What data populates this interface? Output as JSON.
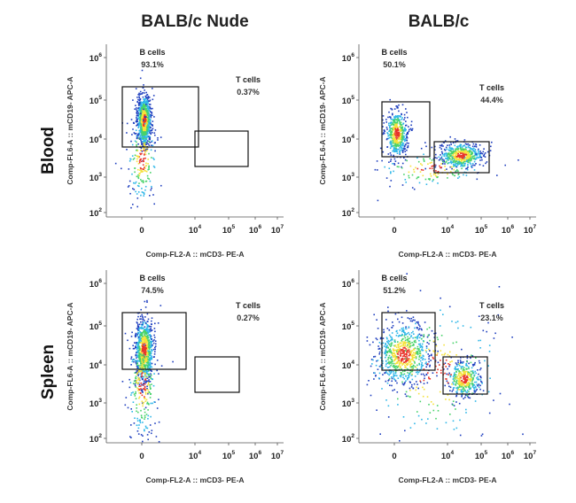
{
  "columns": [
    "BALB/c Nude",
    "BALB/c"
  ],
  "rows": [
    "Blood",
    "Spleen"
  ],
  "chart_data": [
    {
      "type": "scatter",
      "column": "BALB/c Nude",
      "row": "Blood",
      "xlabel": "Comp-FL2-A :: mCD3- PE-A",
      "ylabel": "Comp-FL6-A :: mCD19- APC-A",
      "x_scale": "biexponential",
      "y_scale": "log",
      "ylim": [
        100,
        1000000
      ],
      "x_ticks": [
        "0",
        "10^4",
        "10^5",
        "10^6",
        "10^7"
      ],
      "y_ticks": [
        "10^2",
        "10^3",
        "10^4",
        "10^5",
        "10^6"
      ],
      "gates": [
        {
          "name": "B cells",
          "percent": "93.1%"
        },
        {
          "name": "T cells",
          "percent": "0.37%"
        }
      ]
    },
    {
      "type": "scatter",
      "column": "BALB/c",
      "row": "Blood",
      "xlabel": "Comp-FL2-A :: mCD3- PE-A",
      "ylabel": "Comp-FL6-A :: mCD19- APC-A",
      "x_scale": "biexponential",
      "y_scale": "log",
      "ylim": [
        100,
        1000000
      ],
      "x_ticks": [
        "0",
        "10^4",
        "10^5",
        "10^6",
        "10^7"
      ],
      "y_ticks": [
        "10^2",
        "10^3",
        "10^4",
        "10^5",
        "10^6"
      ],
      "gates": [
        {
          "name": "B cells",
          "percent": "50.1%"
        },
        {
          "name": "T cells",
          "percent": "44.4%"
        }
      ]
    },
    {
      "type": "scatter",
      "column": "BALB/c Nude",
      "row": "Spleen",
      "xlabel": "Comp-FL2-A :: mCD3- PE-A",
      "ylabel": "Comp-FL6-A :: mCD19- APC-A",
      "x_scale": "biexponential",
      "y_scale": "log",
      "ylim": [
        100,
        1000000
      ],
      "x_ticks": [
        "0",
        "10^4",
        "10^5",
        "10^6",
        "10^7"
      ],
      "y_ticks": [
        "10^2",
        "10^3",
        "10^4",
        "10^5",
        "10^6"
      ],
      "gates": [
        {
          "name": "B cells",
          "percent": "74.5%"
        },
        {
          "name": "T cells",
          "percent": "0.27%"
        }
      ]
    },
    {
      "type": "scatter",
      "column": "BALB/c",
      "row": "Spleen",
      "xlabel": "Comp-FL2-A :: mCD3- PE-A",
      "ylabel": "Comp-FL6-A :: mCD19- APC-A",
      "x_scale": "biexponential",
      "y_scale": "log",
      "ylim": [
        100,
        1000000
      ],
      "x_ticks": [
        "0",
        "10^4",
        "10^5",
        "10^6",
        "10^7"
      ],
      "y_ticks": [
        "10^2",
        "10^3",
        "10^4",
        "10^5",
        "10^6"
      ],
      "gates": [
        {
          "name": "B cells",
          "percent": "51.2%"
        },
        {
          "name": "T cells",
          "percent": "23.1%"
        }
      ]
    }
  ],
  "colors": {
    "density_low": "#1f3fbf",
    "density_mid_low": "#2fb7e8",
    "density_mid": "#48d36a",
    "density_mid_high": "#f5e23a",
    "density_high": "#e8342a",
    "gate_stroke": "#111111",
    "axis": "#555555"
  }
}
